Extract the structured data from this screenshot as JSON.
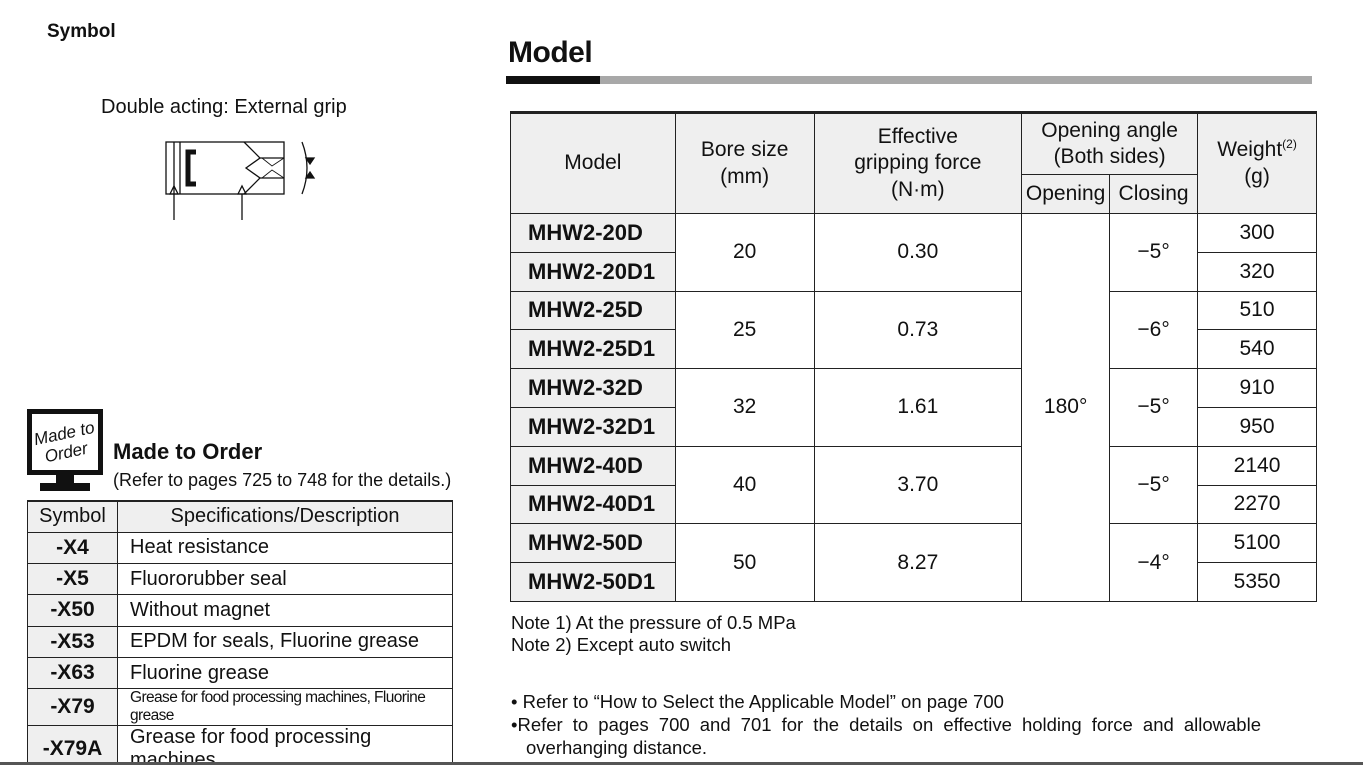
{
  "symbol": {
    "title": "Symbol",
    "caption": "Double acting: External grip"
  },
  "model_section": {
    "heading": "Model",
    "headers": {
      "model": "Model",
      "bore_l1": "Bore size",
      "bore_l2": "(mm)",
      "force_l1": "Effective",
      "force_l2": "gripping force",
      "force_l3": "(N·m)",
      "angle_l1": "Opening angle",
      "angle_l2": "(Both sides)",
      "opening": "Opening",
      "closing": "Closing",
      "weight": "Weight",
      "weight_note": "(2)",
      "weight_unit": "(g)"
    },
    "opening_angle": "180°",
    "groups": [
      {
        "bore": "20",
        "force": "0.30",
        "closing": "−5°",
        "rows": [
          {
            "model": "MHW2-20D",
            "weight": "300"
          },
          {
            "model": "MHW2-20D1",
            "weight": "320"
          }
        ]
      },
      {
        "bore": "25",
        "force": "0.73",
        "closing": "−6°",
        "rows": [
          {
            "model": "MHW2-25D",
            "weight": "510"
          },
          {
            "model": "MHW2-25D1",
            "weight": "540"
          }
        ]
      },
      {
        "bore": "32",
        "force": "1.61",
        "closing": "−5°",
        "rows": [
          {
            "model": "MHW2-32D",
            "weight": "910"
          },
          {
            "model": "MHW2-32D1",
            "weight": "950"
          }
        ]
      },
      {
        "bore": "40",
        "force": "3.70",
        "closing": "−5°",
        "rows": [
          {
            "model": "MHW2-40D",
            "weight": "2140"
          },
          {
            "model": "MHW2-40D1",
            "weight": "2270"
          }
        ]
      },
      {
        "bore": "50",
        "force": "8.27",
        "closing": "−4°",
        "rows": [
          {
            "model": "MHW2-50D",
            "weight": "5100"
          },
          {
            "model": "MHW2-50D1",
            "weight": "5350"
          }
        ]
      }
    ],
    "notes": [
      "Note 1) At the pressure of 0.5 MPa",
      "Note 2) Except auto switch"
    ],
    "bullets": [
      "• Refer to “How to Select the Applicable Model” on page 700",
      "•Refer to pages 700 and 701 for the details on effective holding force and allowable",
      "overhanging distance."
    ]
  },
  "made_to_order": {
    "icon_l1": "Made to",
    "icon_l2": "Order",
    "title": "Made to Order",
    "reference": "(Refer to pages 725 to 748 for the details.)",
    "headers": {
      "symbol": "Symbol",
      "description": "Specifications/Description"
    },
    "rows": [
      {
        "symbol": "-X4",
        "description": "Heat resistance"
      },
      {
        "symbol": "-X5",
        "description": "Fluororubber seal"
      },
      {
        "symbol": "-X50",
        "description": "Without magnet"
      },
      {
        "symbol": "-X53",
        "description": "EPDM for seals, Fluorine grease"
      },
      {
        "symbol": "-X63",
        "description": "Fluorine grease"
      },
      {
        "symbol": "-X79",
        "description": "Grease for food processing machines, Fluorine grease"
      },
      {
        "symbol": "-X79A",
        "description": "Grease for food processing machines"
      }
    ]
  }
}
